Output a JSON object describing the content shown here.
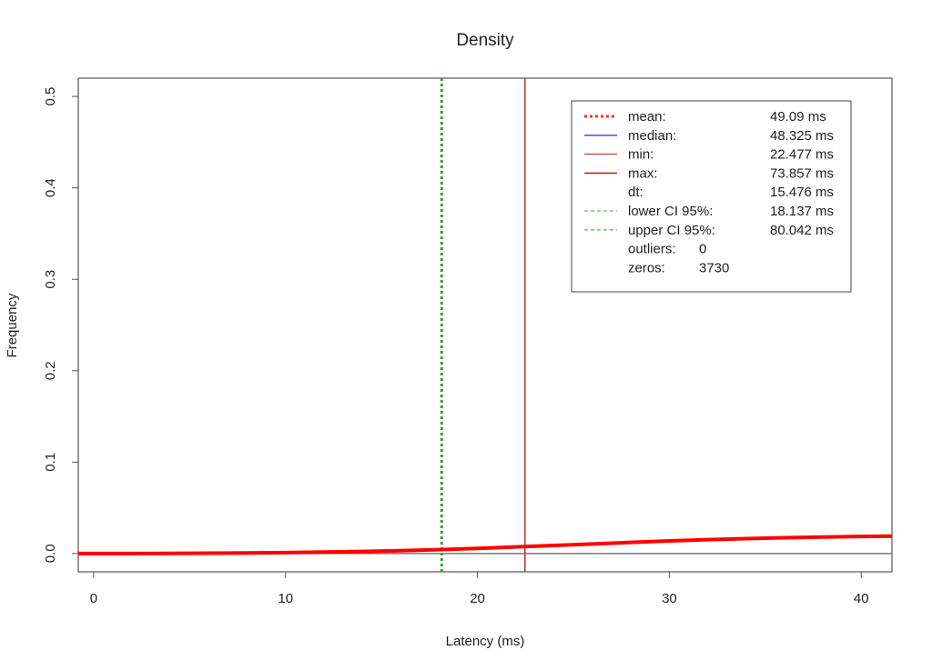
{
  "chart_data": {
    "type": "line",
    "title": "Density",
    "xlabel": "Latency (ms)",
    "ylabel": "Frequency",
    "xlim": [
      -0.8,
      41.6
    ],
    "ylim": [
      -0.02,
      0.52
    ],
    "x_ticks": [
      0,
      10,
      20,
      30,
      40
    ],
    "x_tick_labels": [
      "0",
      "10",
      "20",
      "30",
      "40"
    ],
    "y_ticks": [
      0.0,
      0.1,
      0.2,
      0.3,
      0.4,
      0.5
    ],
    "y_tick_labels": [
      "0.0",
      "0.1",
      "0.2",
      "0.3",
      "0.4",
      "0.5"
    ],
    "grid": false,
    "legend_position": "top-right",
    "density_color": "#ff0000",
    "density_curve": {
      "x": [
        -0.8,
        0,
        2,
        4,
        6,
        8,
        10,
        12,
        14,
        16,
        18,
        20,
        22,
        24,
        26,
        28,
        30,
        32,
        34,
        36,
        38,
        40,
        41.6
      ],
      "y": [
        0.0,
        0.0,
        0.0,
        0.0002,
        0.0004,
        0.0007,
        0.001,
        0.0016,
        0.0023,
        0.0032,
        0.0043,
        0.0057,
        0.0072,
        0.0088,
        0.0104,
        0.0122,
        0.0138,
        0.0152,
        0.0163,
        0.0173,
        0.018,
        0.0187,
        0.019
      ]
    },
    "reference_lines": [
      {
        "kind": "zero-line",
        "axis": "y",
        "value": 0.0,
        "color": "#777777",
        "style": "solid"
      },
      {
        "kind": "lower-ci",
        "axis": "x",
        "value": 18.137,
        "color": "#3a9a3a",
        "style": "dotted"
      },
      {
        "kind": "min",
        "axis": "x",
        "value": 22.477,
        "color": "#a83232",
        "style": "solid"
      }
    ],
    "legend": [
      {
        "label": "mean:",
        "value": "49.09 ms",
        "color": "#ff3030",
        "style": "dotted"
      },
      {
        "label": "median:",
        "value": "48.325 ms",
        "color": "#5555ff",
        "style": "solid"
      },
      {
        "label": "min:",
        "value": "22.477 ms",
        "color": "#c06060",
        "style": "solid"
      },
      {
        "label": "max:",
        "value": "73.857 ms",
        "color": "#b03030",
        "style": "solid"
      },
      {
        "label": "dt:",
        "value": "15.476 ms",
        "color": "",
        "style": "none"
      },
      {
        "label": "lower CI 95%:",
        "value": "18.137 ms",
        "color": "#88c088",
        "style": "dashed"
      },
      {
        "label": "upper CI 95%:",
        "value": "80.042 ms",
        "color": "#88c088",
        "style": "dashed"
      },
      {
        "label": "outliers:",
        "value": "0",
        "color": "",
        "style": "none"
      },
      {
        "label": "zeros:",
        "value": "3730",
        "color": "",
        "style": "none"
      }
    ]
  }
}
